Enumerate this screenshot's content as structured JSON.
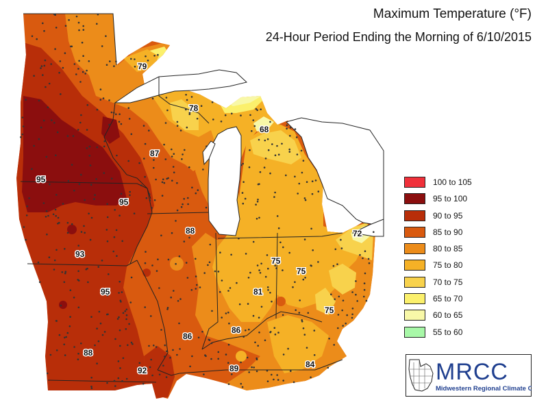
{
  "title": "Maximum Temperature (°F)",
  "subtitle": "24-Hour Period Ending the Morning of 6/10/2015",
  "legend": [
    {
      "label": "100 to 105",
      "color": "#f0303a"
    },
    {
      "label": "95 to 100",
      "color": "#8b0e0e"
    },
    {
      "label": "90 to 95",
      "color": "#b82e09"
    },
    {
      "label": "85 to 90",
      "color": "#d95a0f"
    },
    {
      "label": "80 to 85",
      "color": "#ec8c1a"
    },
    {
      "label": "75 to 80",
      "color": "#f5b126"
    },
    {
      "label": "70 to 75",
      "color": "#f8d24c"
    },
    {
      "label": "65 to 70",
      "color": "#fbf06c"
    },
    {
      "label": "60 to 65",
      "color": "#f8f8a8"
    },
    {
      "label": "55 to 60",
      "color": "#a8f8a8"
    }
  ],
  "map_labels": [
    "79",
    "78",
    "68",
    "87",
    "95",
    "95",
    "88",
    "72",
    "93",
    "75",
    "75",
    "95",
    "81",
    "75",
    "86",
    "86",
    "88",
    "92",
    "89",
    "84"
  ],
  "logo": {
    "name": "MRCC",
    "caption": "Midwestern Regional Climate Center"
  },
  "colors": {
    "lake": "#ffffff",
    "border": "#222222",
    "station": "#333333"
  }
}
